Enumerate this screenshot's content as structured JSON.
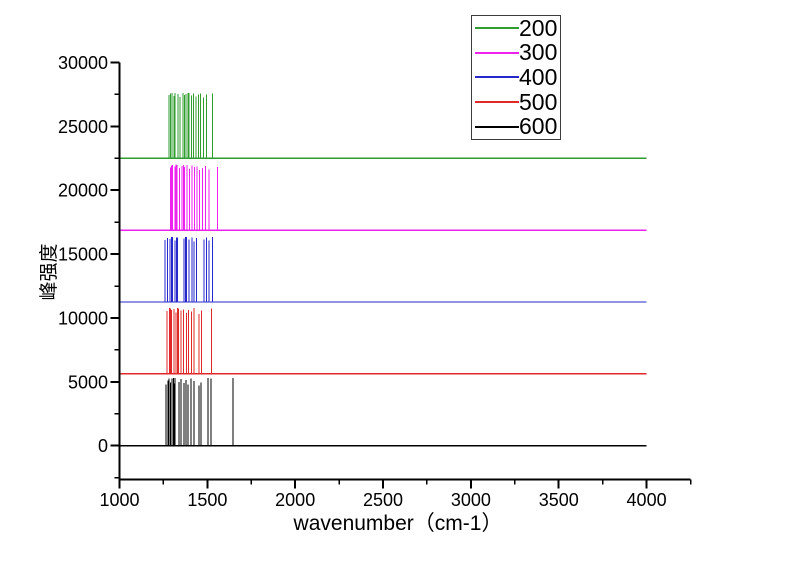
{
  "chart_data": {
    "type": "line",
    "subtype": "stacked-stick-spectra",
    "title": "",
    "xlabel": "wavenumber（cm-1）",
    "ylabel": "峰强度",
    "xlim": [
      1000,
      4250
    ],
    "ylim": [
      -2650,
      30000
    ],
    "x_major_ticks": [
      1000,
      1500,
      2000,
      2500,
      3000,
      3500,
      4000
    ],
    "x_minor_ticks": [
      1250,
      1750,
      2250,
      2750,
      3250,
      3750,
      4250
    ],
    "y_major_ticks": [
      0,
      5000,
      10000,
      15000,
      20000,
      25000,
      30000
    ],
    "y_minor_ticks": [
      -2500,
      2500,
      7500,
      12500,
      17500,
      22500,
      27500
    ],
    "grid": false,
    "axis_color": "#000000",
    "legend_position": "top-right",
    "legend_border_color": "#3c3c3c",
    "series": [
      {
        "name": "200",
        "color": "#2f9e2f",
        "baseline": 22500,
        "line_x_start": 1000,
        "line_x_end": 4000,
        "peaks": [
          [
            1283,
            4950
          ],
          [
            1291,
            5060
          ],
          [
            1298,
            5100
          ],
          [
            1310,
            4880
          ],
          [
            1317,
            5120
          ],
          [
            1334,
            5050
          ],
          [
            1345,
            4800
          ],
          [
            1362,
            5100
          ],
          [
            1370,
            4950
          ],
          [
            1378,
            5020
          ],
          [
            1390,
            5130
          ],
          [
            1396,
            5120
          ],
          [
            1409,
            4900
          ],
          [
            1421,
            5060
          ],
          [
            1434,
            4850
          ],
          [
            1449,
            5000
          ],
          [
            1462,
            5090
          ],
          [
            1477,
            4750
          ],
          [
            1494,
            4980
          ],
          [
            1528,
            5060
          ]
        ]
      },
      {
        "name": "300",
        "color": "#ee22ee",
        "baseline": 16875,
        "line_x_start": 1000,
        "line_x_end": 4000,
        "peaks": [
          [
            1290,
            4900
          ],
          [
            1296,
            5050
          ],
          [
            1303,
            5100
          ],
          [
            1315,
            4980
          ],
          [
            1322,
            5120
          ],
          [
            1328,
            5100
          ],
          [
            1342,
            4850
          ],
          [
            1355,
            5020
          ],
          [
            1363,
            5110
          ],
          [
            1370,
            4930
          ],
          [
            1384,
            5080
          ],
          [
            1398,
            4800
          ],
          [
            1412,
            5060
          ],
          [
            1426,
            4950
          ],
          [
            1440,
            5000
          ],
          [
            1455,
            4700
          ],
          [
            1472,
            4880
          ],
          [
            1490,
            5030
          ],
          [
            1510,
            4760
          ],
          [
            1558,
            4950
          ]
        ]
      },
      {
        "name": "400",
        "color": "#2727cc",
        "baseline": 11250,
        "line_x_start": 1000,
        "line_x_end": 4000,
        "peaks": [
          [
            1260,
            4850
          ],
          [
            1273,
            5020
          ],
          [
            1287,
            4950
          ],
          [
            1295,
            5080
          ],
          [
            1302,
            5080
          ],
          [
            1317,
            4800
          ],
          [
            1324,
            5060
          ],
          [
            1330,
            5040
          ],
          [
            1368,
            4980
          ],
          [
            1375,
            5090
          ],
          [
            1381,
            5100
          ],
          [
            1396,
            4880
          ],
          [
            1412,
            5060
          ],
          [
            1425,
            4750
          ],
          [
            1438,
            4990
          ],
          [
            1481,
            4900
          ],
          [
            1494,
            5050
          ],
          [
            1510,
            4820
          ],
          [
            1528,
            5070
          ]
        ]
      },
      {
        "name": "500",
        "color": "#e02828",
        "baseline": 5625,
        "line_x_start": 1000,
        "line_x_end": 4000,
        "peaks": [
          [
            1270,
            4900
          ],
          [
            1284,
            5150
          ],
          [
            1290,
            5100
          ],
          [
            1296,
            4980
          ],
          [
            1310,
            5080
          ],
          [
            1323,
            4820
          ],
          [
            1330,
            5140
          ],
          [
            1337,
            5120
          ],
          [
            1350,
            4950
          ],
          [
            1365,
            5050
          ],
          [
            1380,
            4780
          ],
          [
            1394,
            5000
          ],
          [
            1410,
            4880
          ],
          [
            1424,
            5150
          ],
          [
            1452,
            4700
          ],
          [
            1468,
            4950
          ],
          [
            1524,
            5100
          ]
        ]
      },
      {
        "name": "600",
        "color": "#000000",
        "baseline": 0,
        "line_x_start": 1000,
        "line_x_end": 4000,
        "peaks": [
          [
            1266,
            4800
          ],
          [
            1277,
            5100
          ],
          [
            1283,
            5250
          ],
          [
            1289,
            4950
          ],
          [
            1300,
            5250
          ],
          [
            1306,
            5300
          ],
          [
            1311,
            4850
          ],
          [
            1317,
            5300
          ],
          [
            1340,
            5000
          ],
          [
            1351,
            5200
          ],
          [
            1368,
            4900
          ],
          [
            1379,
            5150
          ],
          [
            1391,
            4800
          ],
          [
            1408,
            5250
          ],
          [
            1425,
            5050
          ],
          [
            1453,
            4700
          ],
          [
            1464,
            4950
          ],
          [
            1504,
            5300
          ],
          [
            1521,
            5250
          ],
          [
            1647,
            5300
          ]
        ]
      }
    ]
  }
}
